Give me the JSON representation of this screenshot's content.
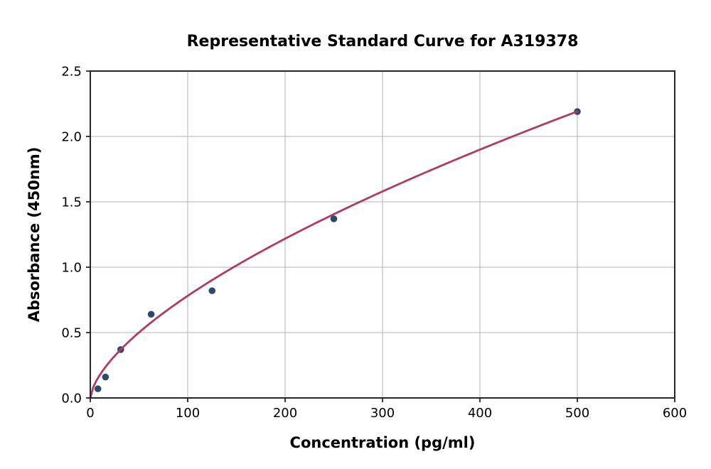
{
  "chart_data": {
    "type": "scatter",
    "title": "Representative Standard Curve for A319378",
    "xlabel": "Concentration (pg/ml)",
    "ylabel": "Absorbance (450nm)",
    "xlim": [
      0,
      600
    ],
    "ylim": [
      0,
      2.5
    ],
    "x_ticks": [
      0,
      100,
      200,
      300,
      400,
      500,
      600
    ],
    "x_tick_labels": [
      "0",
      "100",
      "200",
      "300",
      "400",
      "500",
      "600"
    ],
    "y_ticks": [
      0.0,
      0.5,
      1.0,
      1.5,
      2.0,
      2.5
    ],
    "y_tick_labels": [
      "0.0",
      "0.5",
      "1.0",
      "1.5",
      "2.0",
      "2.5"
    ],
    "grid": "both",
    "legend": "none",
    "points": {
      "x": [
        7.8,
        15.6,
        31.25,
        62.5,
        125,
        250,
        500
      ],
      "y": [
        0.07,
        0.16,
        0.37,
        0.64,
        0.82,
        1.37,
        2.19
      ]
    },
    "fit_curve": {
      "type": "power",
      "a": 0.0408,
      "b": 0.641,
      "x_start": 0,
      "x_end": 500
    },
    "colors": {
      "point_color": "#2f4a68",
      "curve_color": "#b03c63",
      "grid_color": "#b3b3b3",
      "spine_color": "#262626",
      "text_color": "#000000",
      "background": "#ffffff"
    }
  }
}
